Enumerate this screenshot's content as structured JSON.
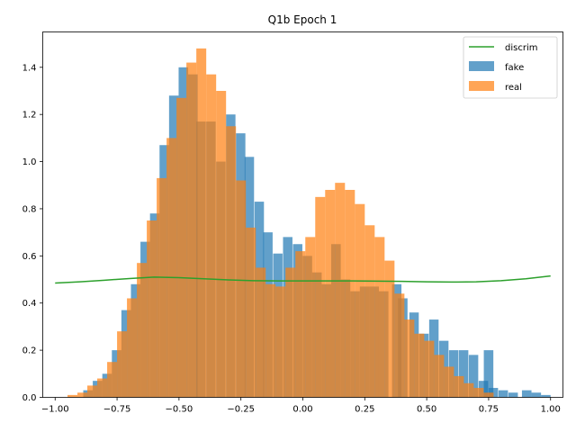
{
  "chart_data": {
    "type": "bar",
    "title": "Q1b Epoch 1",
    "xlabel": "",
    "ylabel": "",
    "xlim": [
      -1.05,
      1.05
    ],
    "ylim": [
      0,
      1.55
    ],
    "xticks": [
      -1.0,
      -0.75,
      -0.5,
      -0.25,
      0.0,
      0.25,
      0.5,
      0.75,
      1.0
    ],
    "xtick_labels": [
      "−1.00",
      "−0.75",
      "−0.50",
      "−0.25",
      "0.00",
      "0.25",
      "0.50",
      "0.75",
      "1.00"
    ],
    "yticks": [
      0.0,
      0.2,
      0.4,
      0.6,
      0.8,
      1.0,
      1.2,
      1.4
    ],
    "ytick_labels": [
      "0.0",
      "0.2",
      "0.4",
      "0.6",
      "0.8",
      "1.0",
      "1.2",
      "1.4"
    ],
    "grid": false,
    "legend_position": "top-right",
    "series": [
      {
        "name": "fake",
        "kind": "hist",
        "color": "#1f77b4",
        "alpha": 0.7,
        "bin_start": -0.925,
        "bin_width": 0.0385,
        "values": [
          0.0,
          0.03,
          0.07,
          0.1,
          0.2,
          0.37,
          0.48,
          0.66,
          0.78,
          1.07,
          1.28,
          1.4,
          1.37,
          1.43,
          1.4,
          1.22,
          1.15,
          1.0,
          1.17,
          1.12,
          1.02,
          0.83,
          0.7,
          0.73,
          0.6,
          0.53,
          0.48,
          0.65,
          0.5,
          0.45,
          0.47,
          0.47,
          0.45,
          0.45,
          0.42,
          0.41,
          0.38,
          0.33,
          0.3,
          0.27,
          0.22,
          0.22,
          0.2,
          0.2,
          0.15,
          0.18,
          0.05,
          0.03,
          0.02,
          0.01
        ],
        "extra_bins": [
          {
            "x": -0.43,
            "w": 0.038,
            "v": 1.17
          },
          {
            "x": -0.39,
            "w": 0.038,
            "v": 1.17
          },
          {
            "x": -0.35,
            "w": 0.038,
            "v": 1.0
          },
          {
            "x": -0.31,
            "w": 0.038,
            "v": 1.2
          },
          {
            "x": -0.27,
            "w": 0.038,
            "v": 1.12
          },
          {
            "x": -0.235,
            "w": 0.038,
            "v": 1.02
          },
          {
            "x": -0.195,
            "w": 0.038,
            "v": 0.83
          },
          {
            "x": -0.16,
            "w": 0.038,
            "v": 0.7
          },
          {
            "x": -0.12,
            "w": 0.038,
            "v": 0.61
          },
          {
            "x": -0.08,
            "w": 0.038,
            "v": 0.68
          },
          {
            "x": -0.04,
            "w": 0.038,
            "v": 0.65
          },
          {
            "x": 0.36,
            "w": 0.038,
            "v": 0.48
          },
          {
            "x": 0.43,
            "w": 0.038,
            "v": 0.36
          },
          {
            "x": 0.47,
            "w": 0.038,
            "v": 0.27
          },
          {
            "x": 0.51,
            "w": 0.038,
            "v": 0.33
          },
          {
            "x": 0.55,
            "w": 0.038,
            "v": 0.24
          },
          {
            "x": 0.59,
            "w": 0.038,
            "v": 0.2
          },
          {
            "x": 0.63,
            "w": 0.038,
            "v": 0.2
          },
          {
            "x": 0.67,
            "w": 0.038,
            "v": 0.18
          },
          {
            "x": 0.71,
            "w": 0.038,
            "v": 0.07
          },
          {
            "x": 0.75,
            "w": 0.038,
            "v": 0.04
          },
          {
            "x": 0.79,
            "w": 0.038,
            "v": 0.03
          },
          {
            "x": 0.83,
            "w": 0.038,
            "v": 0.02
          }
        ]
      },
      {
        "name": "real",
        "kind": "hist",
        "color": "#ff7f0e",
        "alpha": 0.7,
        "bins": [
          {
            "x": -0.95,
            "w": 0.04,
            "v": 0.01
          },
          {
            "x": -0.91,
            "w": 0.04,
            "v": 0.02
          },
          {
            "x": -0.87,
            "w": 0.04,
            "v": 0.05
          },
          {
            "x": -0.83,
            "w": 0.04,
            "v": 0.08
          },
          {
            "x": -0.79,
            "w": 0.04,
            "v": 0.15
          },
          {
            "x": -0.75,
            "w": 0.04,
            "v": 0.28
          },
          {
            "x": -0.71,
            "w": 0.04,
            "v": 0.42
          },
          {
            "x": -0.67,
            "w": 0.04,
            "v": 0.57
          },
          {
            "x": -0.63,
            "w": 0.04,
            "v": 0.75
          },
          {
            "x": -0.59,
            "w": 0.04,
            "v": 0.93
          },
          {
            "x": -0.55,
            "w": 0.04,
            "v": 1.1
          },
          {
            "x": -0.51,
            "w": 0.04,
            "v": 1.27
          },
          {
            "x": -0.47,
            "w": 0.04,
            "v": 1.42
          },
          {
            "x": -0.43,
            "w": 0.04,
            "v": 1.48
          },
          {
            "x": -0.39,
            "w": 0.04,
            "v": 1.37
          },
          {
            "x": -0.35,
            "w": 0.04,
            "v": 1.3
          },
          {
            "x": -0.31,
            "w": 0.04,
            "v": 1.15
          },
          {
            "x": -0.27,
            "w": 0.04,
            "v": 0.92
          },
          {
            "x": -0.23,
            "w": 0.04,
            "v": 0.72
          },
          {
            "x": -0.19,
            "w": 0.04,
            "v": 0.55
          },
          {
            "x": -0.15,
            "w": 0.04,
            "v": 0.48
          },
          {
            "x": -0.11,
            "w": 0.04,
            "v": 0.47
          },
          {
            "x": -0.07,
            "w": 0.04,
            "v": 0.55
          },
          {
            "x": -0.03,
            "w": 0.04,
            "v": 0.62
          },
          {
            "x": 0.01,
            "w": 0.04,
            "v": 0.68
          },
          {
            "x": 0.05,
            "w": 0.04,
            "v": 0.85
          },
          {
            "x": 0.09,
            "w": 0.04,
            "v": 0.88
          },
          {
            "x": 0.13,
            "w": 0.04,
            "v": 0.91
          },
          {
            "x": 0.17,
            "w": 0.04,
            "v": 0.88
          },
          {
            "x": 0.21,
            "w": 0.04,
            "v": 0.82
          },
          {
            "x": 0.25,
            "w": 0.04,
            "v": 0.73
          },
          {
            "x": 0.29,
            "w": 0.04,
            "v": 0.68
          },
          {
            "x": 0.33,
            "w": 0.04,
            "v": 0.58
          },
          {
            "x": 0.37,
            "w": 0.04,
            "v": 0.44
          },
          {
            "x": 0.41,
            "w": 0.04,
            "v": 0.33
          },
          {
            "x": 0.45,
            "w": 0.04,
            "v": 0.27
          },
          {
            "x": 0.49,
            "w": 0.04,
            "v": 0.24
          },
          {
            "x": 0.53,
            "w": 0.04,
            "v": 0.18
          },
          {
            "x": 0.57,
            "w": 0.04,
            "v": 0.13
          },
          {
            "x": 0.61,
            "w": 0.04,
            "v": 0.09
          },
          {
            "x": 0.65,
            "w": 0.04,
            "v": 0.06
          },
          {
            "x": 0.69,
            "w": 0.04,
            "v": 0.04
          },
          {
            "x": 0.73,
            "w": 0.04,
            "v": 0.02
          }
        ]
      },
      {
        "name": "discrim",
        "kind": "line",
        "color": "#2ca02c",
        "x": [
          -1.0,
          -0.9,
          -0.8,
          -0.7,
          -0.6,
          -0.5,
          -0.4,
          -0.3,
          -0.2,
          -0.1,
          0.0,
          0.1,
          0.2,
          0.3,
          0.4,
          0.5,
          0.6,
          0.7,
          0.8,
          0.9,
          1.0
        ],
        "y": [
          0.485,
          0.49,
          0.497,
          0.504,
          0.51,
          0.508,
          0.503,
          0.498,
          0.495,
          0.494,
          0.494,
          0.494,
          0.494,
          0.493,
          0.492,
          0.49,
          0.489,
          0.49,
          0.495,
          0.503,
          0.515
        ]
      }
    ]
  }
}
